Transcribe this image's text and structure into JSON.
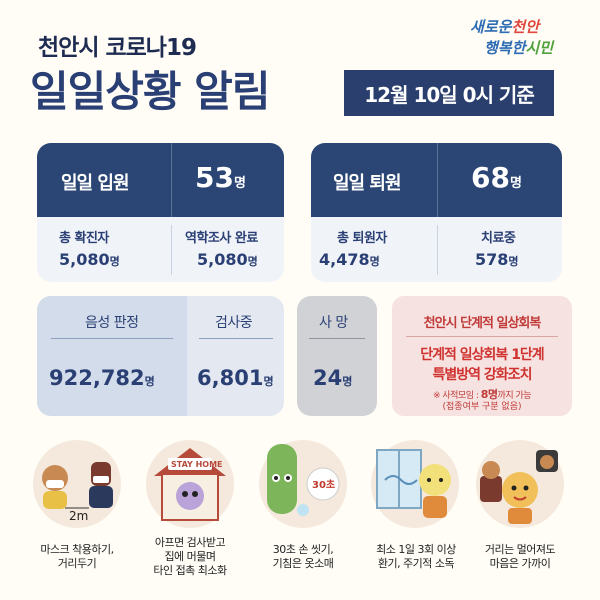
{
  "header": {
    "sub_title": "천안시 코로나19",
    "main_title": "일일상황 알림",
    "date_badge": "12월 10일 0시 기준",
    "logo_line1_a": "새로운",
    "logo_line1_b": "천안",
    "logo_line2_a": "행복한",
    "logo_line2_b": "시민"
  },
  "admission": {
    "label": "일일 입원",
    "value": "53",
    "unit": "명",
    "total_confirmed_label": "총 확진자",
    "total_confirmed_value": "5,080",
    "total_confirmed_unit": "명",
    "epi_done_label": "역학조사 완료",
    "epi_done_value": "5,080",
    "epi_done_unit": "명"
  },
  "discharge": {
    "label": "일일 퇴원",
    "value": "68",
    "unit": "명",
    "total_discharged_label": "총 퇴원자",
    "total_discharged_value": "4,478",
    "total_discharged_unit": "명",
    "treating_label": "치료중",
    "treating_value": "578",
    "treating_unit": "명"
  },
  "tests": {
    "negative_label": "음성 판정",
    "negative_value": "922,782",
    "negative_unit": "명",
    "testing_label": "검사중",
    "testing_value": "6,801",
    "testing_unit": "명"
  },
  "deaths": {
    "label": "사 망",
    "value": "24",
    "unit": "명"
  },
  "notice": {
    "title": "천안시 단계적 일상회복",
    "line1": "단계적 일상회복 1단계",
    "line2": "특별방역 강화조치",
    "line3_prefix": "※ 사적모임 :",
    "line3_bold": "8명",
    "line3_suffix": "까지 가능",
    "line4": "(접종여부 구분 없음)"
  },
  "tips": [
    {
      "caption": "마스크 착용하기,\n거리두기",
      "icon": "mask-distance-icon",
      "extra": "2m"
    },
    {
      "caption": "아프면 검사받고\n집에 머물며\n타인 접촉 최소화",
      "icon": "stay-home-icon",
      "extra": "STAY HOME"
    },
    {
      "caption": "30초 손 씻기,\n기침은 옷소매",
      "icon": "hand-wash-icon",
      "extra": "30초"
    },
    {
      "caption": "최소 1일 3회 이상\n환기, 주기적 소독",
      "icon": "ventilation-icon",
      "extra": ""
    },
    {
      "caption": "거리는 멀어져도\n마음은 가까이",
      "icon": "heart-distance-icon",
      "extra": ""
    }
  ],
  "colors": {
    "navy": "#2b4675",
    "light_panel": "#f0f3f8",
    "notice_bg": "#f6e2e0",
    "notice_red": "#d0322f",
    "background": "#fffdf6"
  }
}
